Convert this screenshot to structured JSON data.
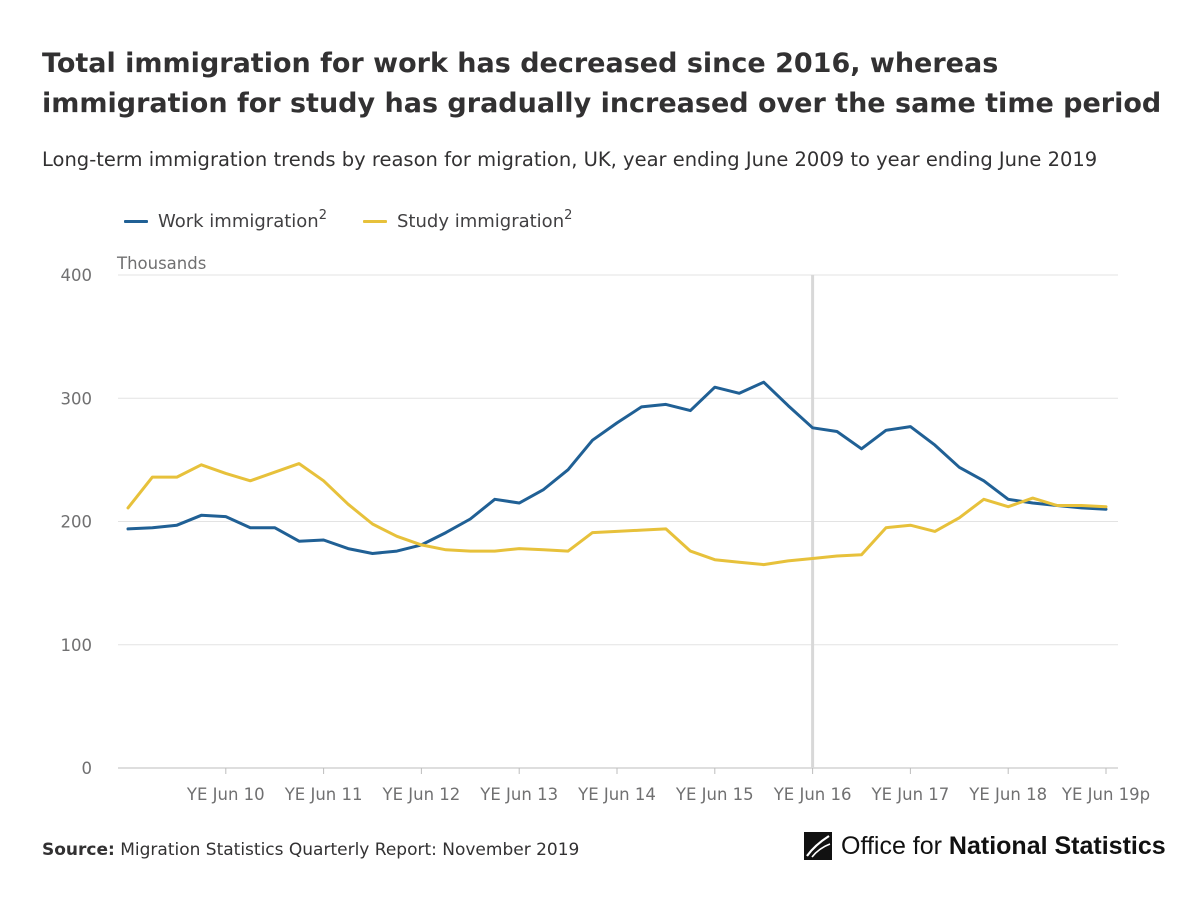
{
  "header": {
    "title": "Total immigration for work has decreased since 2016, whereas immigration for study has gradually increased over the same time period",
    "subtitle": "Long-term immigration trends by reason for migration, UK, year ending June 2009 to year ending June 2019"
  },
  "legend": {
    "work_label": "Work immigration",
    "work_sup": "2",
    "study_label": "Study immigration",
    "study_sup": "2"
  },
  "chart_data": {
    "type": "line",
    "ylabel": "Thousands",
    "ylim": [
      0,
      400
    ],
    "yticks": [
      0,
      100,
      200,
      300,
      400
    ],
    "grid": true,
    "legend_position": "top-left",
    "x": [
      "YE Jun 09",
      "YE Sep 09",
      "YE Dec 09",
      "YE Mar 10",
      "YE Jun 10",
      "YE Sep 10",
      "YE Dec 10",
      "YE Mar 11",
      "YE Jun 11",
      "YE Sep 11",
      "YE Dec 11",
      "YE Mar 12",
      "YE Jun 12",
      "YE Sep 12",
      "YE Dec 12",
      "YE Mar 13",
      "YE Jun 13",
      "YE Sep 13",
      "YE Dec 13",
      "YE Mar 14",
      "YE Jun 14",
      "YE Sep 14",
      "YE Dec 14",
      "YE Mar 15",
      "YE Jun 15",
      "YE Sep 15",
      "YE Dec 15",
      "YE Mar 16",
      "YE Jun 16",
      "YE Sep 16",
      "YE Dec 16",
      "YE Mar 17",
      "YE Jun 17",
      "YE Sep 17",
      "YE Dec 17",
      "YE Mar 18",
      "YE Jun 18",
      "YE Sep 18",
      "YE Dec 18",
      "YE Mar 19",
      "YE Jun 19p"
    ],
    "xtick_labels": [
      "YE Jun 10",
      "YE Jun 11",
      "YE Jun 12",
      "YE Jun 13",
      "YE Jun 14",
      "YE Jun 15",
      "YE Jun 16",
      "YE Jun 17",
      "YE Jun 18",
      "YE Jun 19p"
    ],
    "highlight_x": "YE Jun 16",
    "series": [
      {
        "name": "Work immigration",
        "color": "#206095",
        "values": [
          194,
          195,
          197,
          205,
          204,
          195,
          195,
          184,
          185,
          178,
          174,
          176,
          181,
          191,
          202,
          218,
          215,
          226,
          242,
          266,
          280,
          293,
          295,
          290,
          309,
          304,
          313,
          294,
          276,
          273,
          259,
          274,
          277,
          262,
          244,
          233,
          218,
          215,
          213,
          211,
          210
        ]
      },
      {
        "name": "Study immigration",
        "color": "#E7C13B",
        "values": [
          211,
          236,
          236,
          246,
          239,
          233,
          240,
          247,
          233,
          214,
          198,
          188,
          181,
          177,
          176,
          176,
          178,
          177,
          176,
          191,
          192,
          193,
          194,
          176,
          169,
          167,
          165,
          168,
          170,
          172,
          173,
          195,
          197,
          192,
          203,
          218,
          212,
          219,
          213,
          213,
          212
        ]
      }
    ]
  },
  "footer": {
    "source_label": "Source:",
    "source_text": "Migration Statistics Quarterly Report: November 2019",
    "logo_text_regular": "Office for",
    "logo_text_bold": "National Statistics"
  }
}
